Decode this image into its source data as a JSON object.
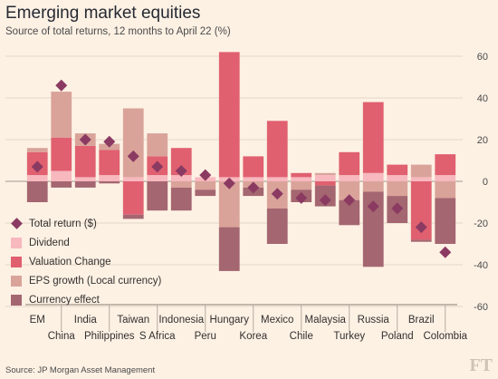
{
  "chart_data": {
    "type": "bar",
    "stacked": true,
    "title": "Emerging market equities",
    "subtitle": "Source of total returns, 12 months to April 22 (%)",
    "source": "Source: JP Morgan Asset Management",
    "logo": "FT",
    "ylim": [
      -60,
      60
    ],
    "yticks": [
      60,
      40,
      20,
      0,
      -20,
      -40,
      -60
    ],
    "grid": true,
    "y_axis_position": "right",
    "legend_position": "bottom-left",
    "categories": [
      "EM",
      "China",
      "India",
      "Philippines",
      "Taiwan",
      "S Africa",
      "Indonesia",
      "Peru",
      "Hungary",
      "Korea",
      "Mexico",
      "Chile",
      "Malaysia",
      "Turkey",
      "Russia",
      "Poland",
      "Brazil",
      "Colombia"
    ],
    "colors": {
      "total_return": "#8b3a62",
      "dividend": "#f7b8be",
      "valuation": "#e06070",
      "eps": "#d9a39a",
      "currency": "#a46670"
    },
    "series": [
      {
        "name": "Dividend",
        "values": [
          3,
          5,
          2,
          3,
          2,
          3,
          3,
          2,
          2,
          2,
          2,
          2,
          3,
          3,
          4,
          3,
          2,
          3
        ]
      },
      {
        "name": "Valuation Change",
        "values": [
          11,
          16,
          15,
          12,
          -16,
          9,
          13,
          0,
          60,
          10,
          27,
          2,
          -2,
          11,
          34,
          5,
          -28,
          10
        ]
      },
      {
        "name": "EPS growth (Local currency)",
        "values": [
          2,
          22,
          6,
          3,
          33,
          11,
          -3,
          -4,
          -22,
          -3,
          -13,
          -4,
          1,
          -9,
          -5,
          -7,
          6,
          -8
        ]
      },
      {
        "name": "Currency effect",
        "values": [
          -10,
          -3,
          -3,
          -1,
          -2,
          -14,
          -11,
          -3,
          -21,
          -4,
          -17,
          -6,
          -10,
          -12,
          -36,
          -13,
          -1,
          -22
        ]
      }
    ],
    "total_return": [
      7,
      46,
      20,
      19,
      12,
      7,
      5,
      3,
      -1,
      -3,
      -6,
      -8,
      -9,
      -9,
      -12,
      -13,
      -22,
      -34
    ],
    "legend": [
      "Total return ($)",
      "Dividend",
      "Valuation Change",
      "EPS growth (Local currency)",
      "Currency effect"
    ]
  }
}
